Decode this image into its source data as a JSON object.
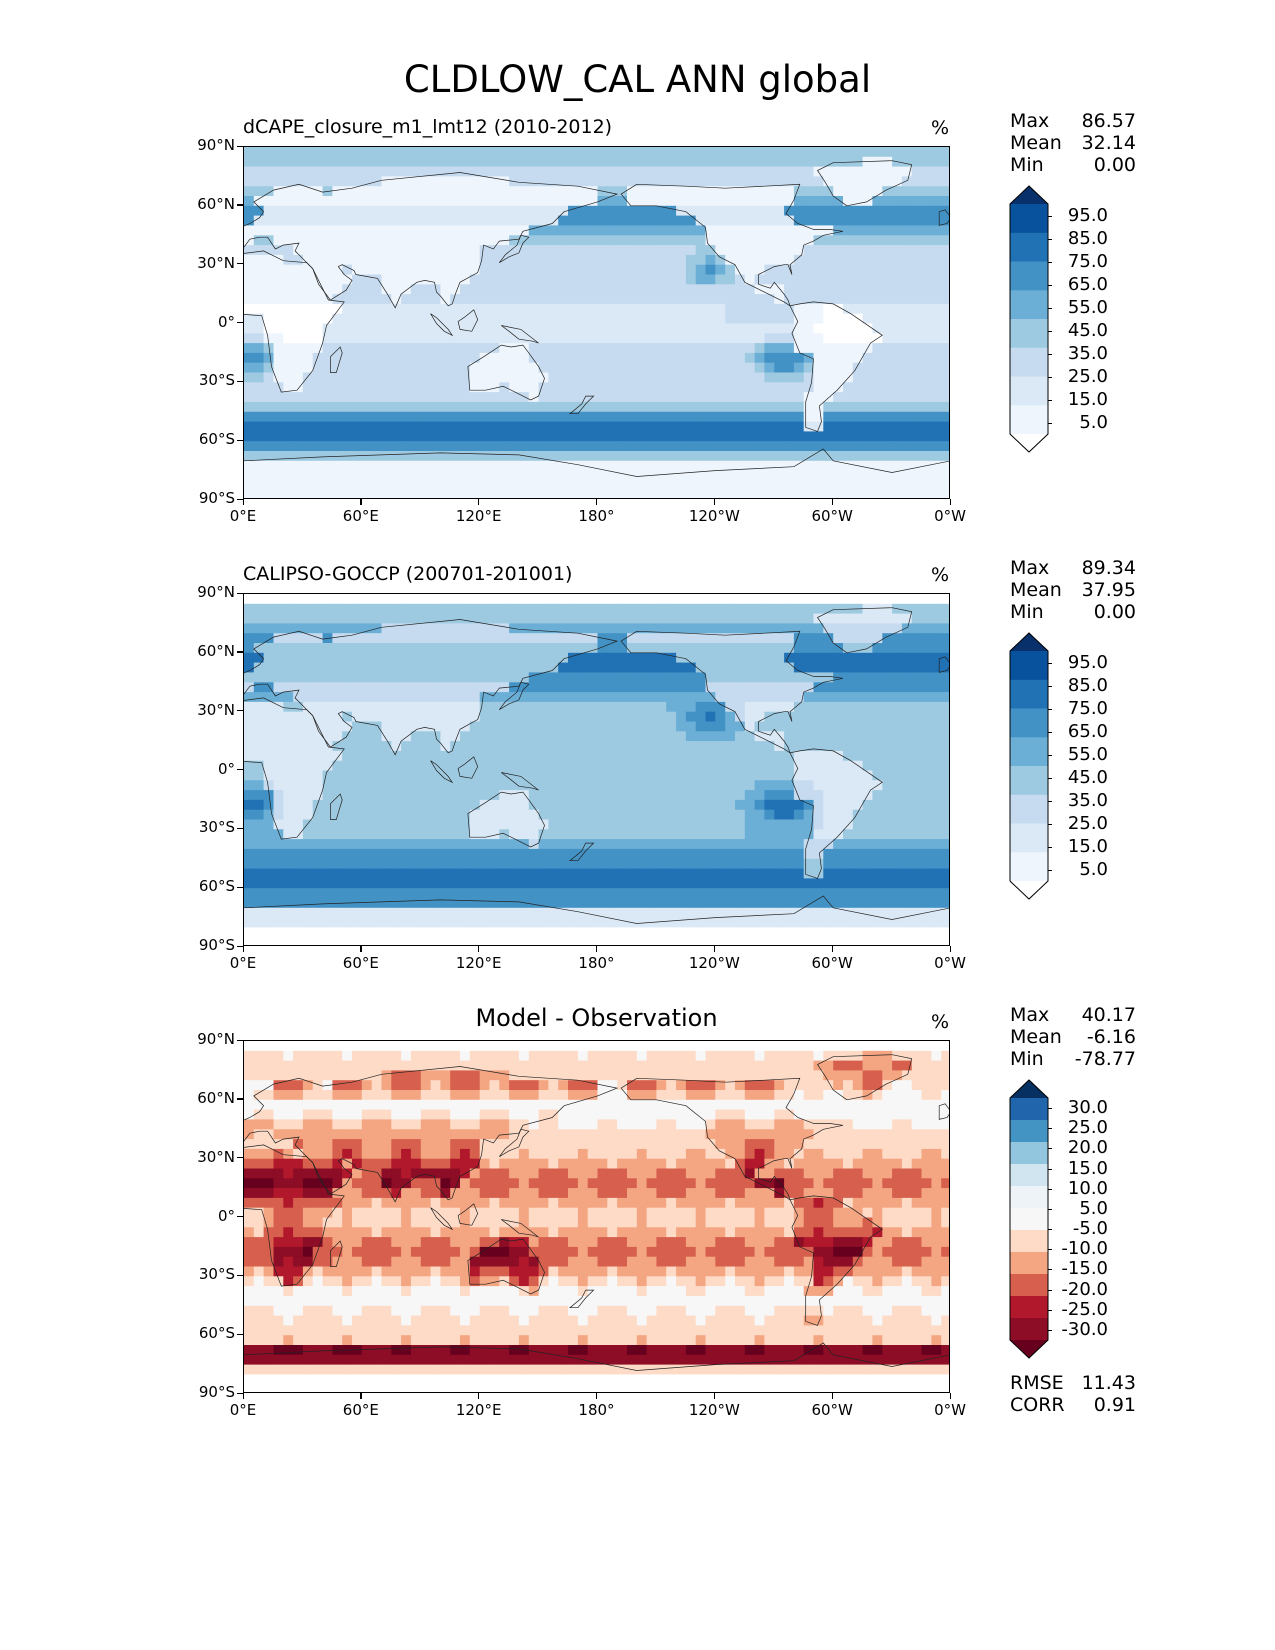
{
  "title": "CLDLOW_CAL ANN global",
  "lon_ticks": [
    "0°E",
    "60°E",
    "120°E",
    "180°",
    "120°W",
    "60°W",
    "0°W"
  ],
  "lat_ticks": [
    "90°N",
    "60°N",
    "30°N",
    "0°",
    "30°S",
    "60°S",
    "90°S"
  ],
  "panels": [
    {
      "id": "test",
      "label": "dCAPE_closure_m1_lmt12 (2010-2012)",
      "label_pos": "left",
      "units": "%",
      "stats": {
        "max_label": "Max",
        "max": "86.57",
        "mean_label": "Mean",
        "mean": "32.14",
        "min_label": "Min",
        "min": "0.00"
      },
      "colorbar": {
        "labels": [
          "95.0",
          "85.0",
          "75.0",
          "65.0",
          "55.0",
          "45.0",
          "35.0",
          "25.0",
          "15.0",
          "5.0"
        ],
        "colors": [
          "#08306b",
          "#08519c",
          "#2171b5",
          "#4292c6",
          "#6baed6",
          "#9ecae1",
          "#c6dbef",
          "#dbe9f6",
          "#eef5fc",
          "#ffffff"
        ]
      }
    },
    {
      "id": "reference",
      "label": "CALIPSO-GOCCP (200701-201001)",
      "label_pos": "left",
      "units": "%",
      "stats": {
        "max_label": "Max",
        "max": "89.34",
        "mean_label": "Mean",
        "mean": "37.95",
        "min_label": "Min",
        "min": "0.00"
      },
      "colorbar": {
        "labels": [
          "95.0",
          "85.0",
          "75.0",
          "65.0",
          "55.0",
          "45.0",
          "35.0",
          "25.0",
          "15.0",
          "5.0"
        ],
        "colors": [
          "#08306b",
          "#08519c",
          "#2171b5",
          "#4292c6",
          "#6baed6",
          "#9ecae1",
          "#c6dbef",
          "#dbe9f6",
          "#eef5fc",
          "#ffffff"
        ]
      }
    },
    {
      "id": "diff",
      "label": "Model - Observation",
      "label_pos": "center",
      "units": "%",
      "stats": {
        "max_label": "Max",
        "max": "40.17",
        "mean_label": "Mean",
        "mean": "-6.16",
        "min_label": "Min",
        "min": "-78.77"
      },
      "extra_stats": {
        "rmse_label": "RMSE",
        "rmse": "11.43",
        "corr_label": "CORR",
        "corr": "0.91"
      },
      "colorbar": {
        "labels": [
          "30.0",
          "25.0",
          "20.0",
          "15.0",
          "10.0",
          "5.0",
          "-5.0",
          "-10.0",
          "-15.0",
          "-20.0",
          "-25.0",
          "-30.0"
        ],
        "colors": [
          "#053061",
          "#2166ac",
          "#4393c3",
          "#92c5de",
          "#d1e5f0",
          "#eef3f7",
          "#f7f7f7",
          "#fddbc7",
          "#f4a582",
          "#d6604d",
          "#b2182b",
          "#8c0d25",
          "#67001f"
        ]
      }
    }
  ],
  "chart_data": [
    {
      "type": "heatmap",
      "title": "dCAPE_closure_m1_lmt12 (2010-2012)",
      "variable": "CLDLOW_CAL",
      "units": "%",
      "projection": "cylindrical, longitude 0°E to 0°W, latitude 90°S to 90°N",
      "levels": [
        5,
        15,
        25,
        35,
        45,
        55,
        65,
        75,
        85,
        95
      ],
      "colormap": "Blues",
      "max": 86.57,
      "mean": 32.14,
      "min": 0.0
    },
    {
      "type": "heatmap",
      "title": "CALIPSO-GOCCP (200701-201001)",
      "variable": "CLDLOW_CAL",
      "units": "%",
      "levels": [
        5,
        15,
        25,
        35,
        45,
        55,
        65,
        75,
        85,
        95
      ],
      "colormap": "Blues",
      "max": 89.34,
      "mean": 37.95,
      "min": 0.0
    },
    {
      "type": "heatmap",
      "title": "Model - Observation",
      "units": "%",
      "levels": [
        -30,
        -25,
        -20,
        -15,
        -10,
        -5,
        5,
        10,
        15,
        20,
        25,
        30
      ],
      "colormap": "RdBu",
      "max": 40.17,
      "mean": -6.16,
      "min": -78.77,
      "rmse": 11.43,
      "corr": 0.91
    }
  ]
}
